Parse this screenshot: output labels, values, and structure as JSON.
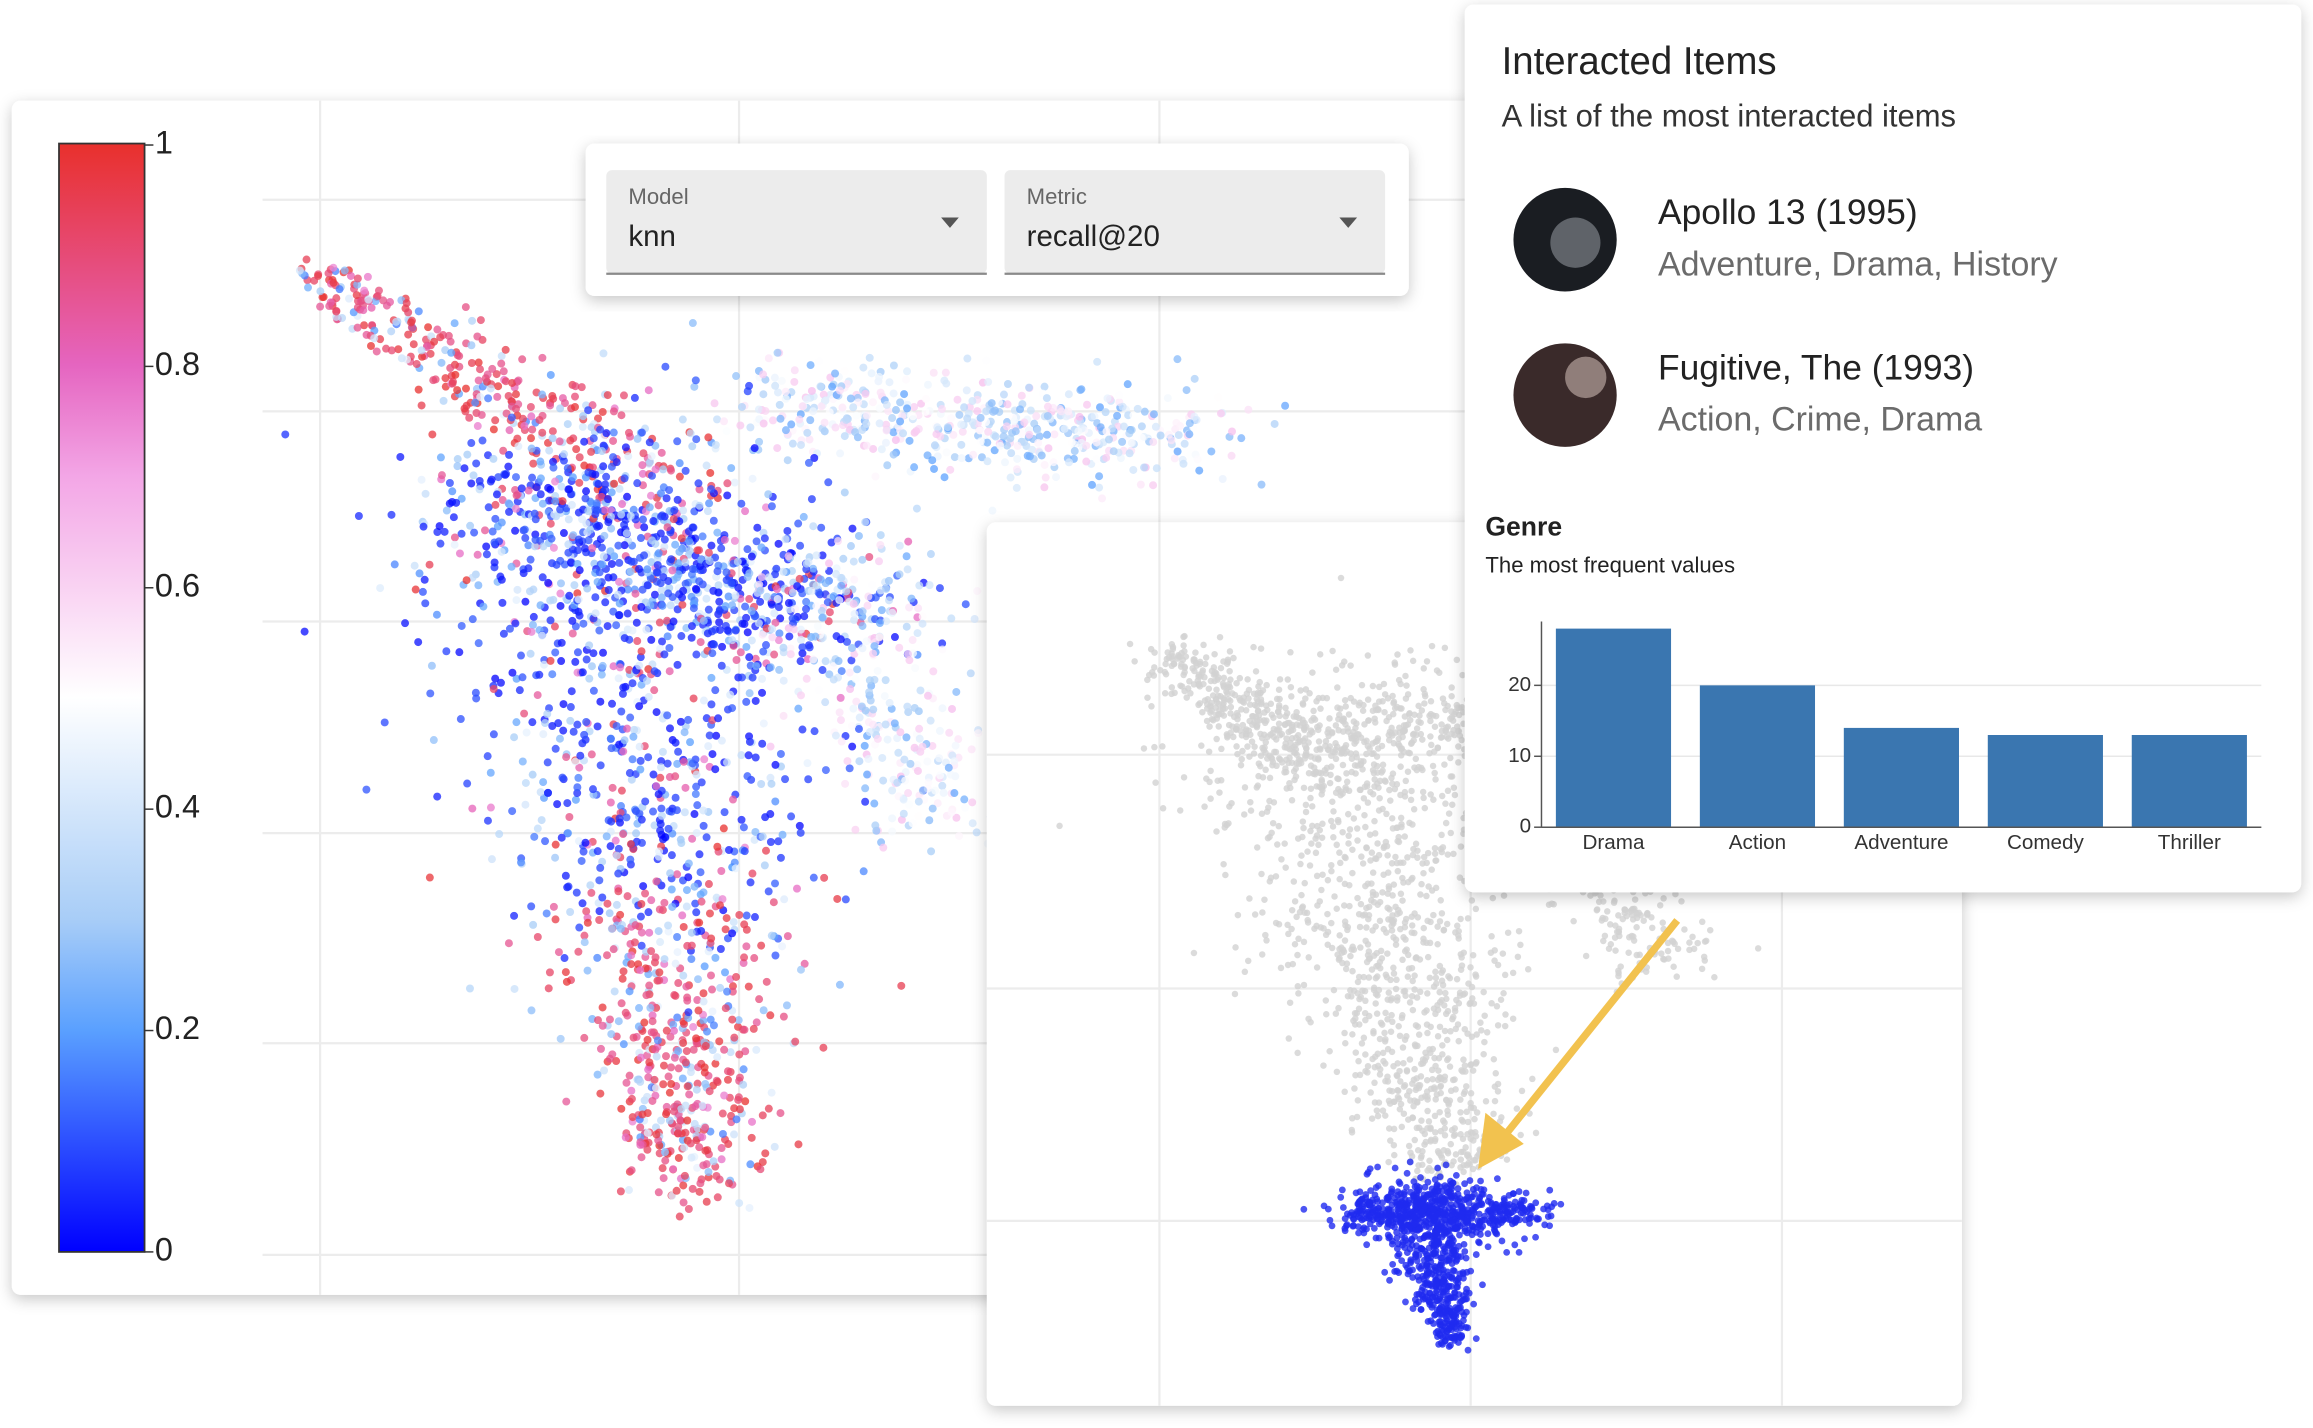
{
  "colorbar": {
    "lim": [
      0,
      1
    ],
    "ticks": [
      0,
      0.2,
      0.4,
      0.6,
      0.8,
      1
    ]
  },
  "controls": [
    {
      "label": "Model",
      "value": "knn"
    },
    {
      "label": "Metric",
      "value": "recall@20"
    }
  ],
  "panel": {
    "title": "Interacted Items",
    "subtitle": "A list of the most interacted items",
    "items": [
      {
        "title": "Apollo 13 (1995)",
        "genres": "Adventure, Drama, History"
      },
      {
        "title": "Fugitive, The (1993)",
        "genres": "Action, Crime, Drama"
      }
    ]
  },
  "chart_data": {
    "type": "bar",
    "title": "Genre",
    "subtitle": "The most frequent values",
    "categories": [
      "Drama",
      "Action",
      "Adventure",
      "Comedy",
      "Thriller"
    ],
    "values": [
      28,
      20,
      14,
      13,
      13
    ],
    "color": "#3a76b0",
    "ylim": [
      0,
      29
    ],
    "yticks": [
      0,
      10,
      20
    ],
    "grid": true
  }
}
